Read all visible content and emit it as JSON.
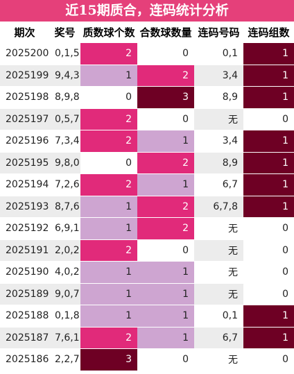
{
  "title": "近15期质合，连码统计分析",
  "headers": [
    "期次",
    "奖号",
    "质数球个数",
    "合数球数量",
    "连码号码",
    "连码组数"
  ],
  "colors": {
    "title_bg": "#e5407a",
    "level0": "#ffffff",
    "level1": "#cea5d1",
    "level2": "#e12a7a",
    "level3": "#6e0024"
  },
  "rows": [
    {
      "issue": "2025200",
      "award": "0,1,5",
      "prime": "2",
      "composite": "0",
      "consec": "0,1",
      "groups": "1"
    },
    {
      "issue": "2025199",
      "award": "9,4,3",
      "prime": "1",
      "composite": "2",
      "consec": "3,4",
      "groups": "1"
    },
    {
      "issue": "2025198",
      "award": "8,9,8",
      "prime": "0",
      "composite": "3",
      "consec": "8,9",
      "groups": "1"
    },
    {
      "issue": "2025197",
      "award": "0,5,7",
      "prime": "2",
      "composite": "0",
      "consec": "无",
      "groups": "0"
    },
    {
      "issue": "2025196",
      "award": "7,3,4",
      "prime": "2",
      "composite": "1",
      "consec": "3,4",
      "groups": "1"
    },
    {
      "issue": "2025195",
      "award": "9,8,0",
      "prime": "0",
      "composite": "2",
      "consec": "8,9",
      "groups": "1"
    },
    {
      "issue": "2025194",
      "award": "7,2,6",
      "prime": "2",
      "composite": "1",
      "consec": "6,7",
      "groups": "1"
    },
    {
      "issue": "2025193",
      "award": "8,7,6",
      "prime": "1",
      "composite": "2",
      "consec": "6,7,8",
      "groups": "1"
    },
    {
      "issue": "2025192",
      "award": "6,9,1",
      "prime": "1",
      "composite": "2",
      "consec": "无",
      "groups": "0"
    },
    {
      "issue": "2025191",
      "award": "2,0,2",
      "prime": "2",
      "composite": "0",
      "consec": "无",
      "groups": "0"
    },
    {
      "issue": "2025190",
      "award": "4,0,2",
      "prime": "1",
      "composite": "1",
      "consec": "无",
      "groups": "0"
    },
    {
      "issue": "2025189",
      "award": "9,0,7",
      "prime": "1",
      "composite": "1",
      "consec": "无",
      "groups": "0"
    },
    {
      "issue": "2025188",
      "award": "0,1,8",
      "prime": "1",
      "composite": "1",
      "consec": "0,1",
      "groups": "1"
    },
    {
      "issue": "2025187",
      "award": "7,6,1",
      "prime": "2",
      "composite": "1",
      "consec": "6,7",
      "groups": "1"
    },
    {
      "issue": "2025186",
      "award": "2,2,7",
      "prime": "3",
      "composite": "0",
      "consec": "无",
      "groups": "0"
    }
  ]
}
